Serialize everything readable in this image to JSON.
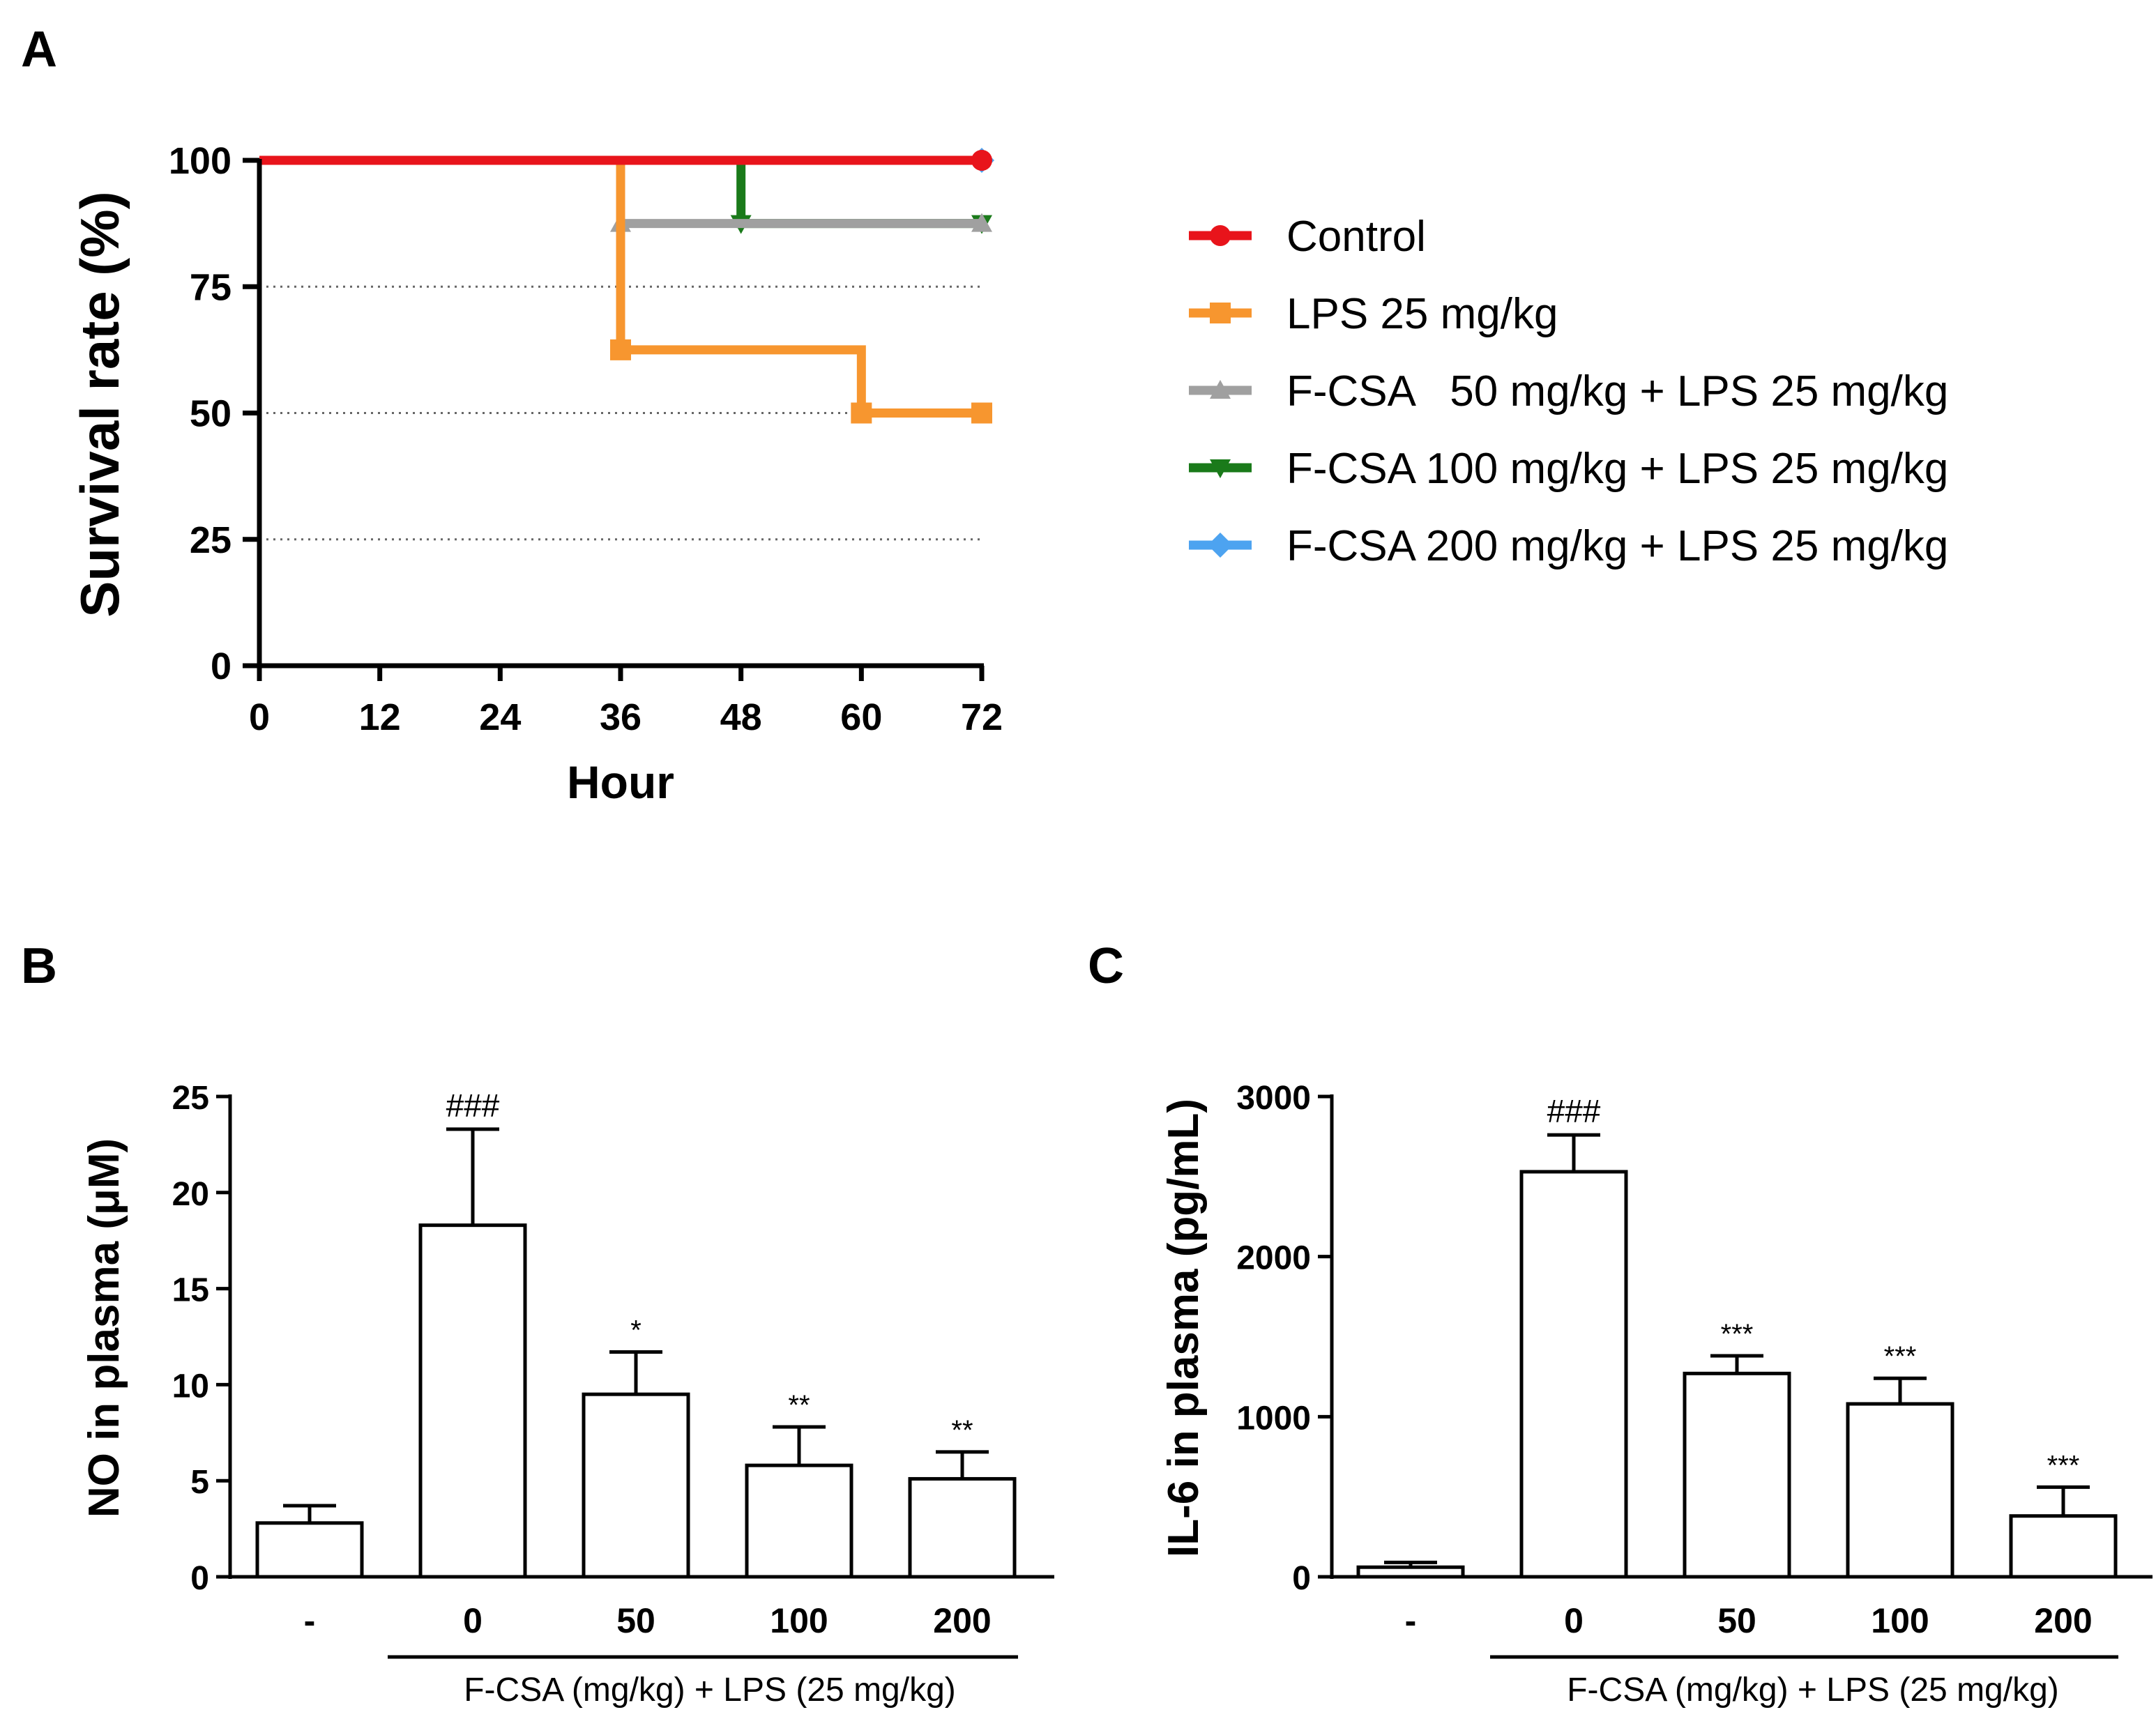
{
  "chart_data": [
    {
      "panel": "A",
      "type": "line",
      "step": true,
      "xlabel": "Hour",
      "ylabel": "Survival rate (%)",
      "xlim": [
        0,
        72
      ],
      "ylim": [
        0,
        100
      ],
      "x_ticks": [
        "0",
        "12",
        "24",
        "36",
        "48",
        "60",
        "72"
      ],
      "y_ticks": [
        "0",
        "25",
        "50",
        "75",
        "100"
      ],
      "gridlines_y": [
        25,
        50,
        75
      ],
      "legend_position": "right",
      "series": [
        {
          "name": "Control",
          "color": "#e8141b",
          "marker": "circle",
          "x": [
            0,
            72
          ],
          "y": [
            100,
            100
          ],
          "marker_x": [
            72
          ],
          "marker_y": [
            100
          ]
        },
        {
          "name": "LPS 25 mg/kg",
          "color": "#f7962f",
          "marker": "square",
          "x": [
            0,
            36,
            36,
            60,
            60,
            72
          ],
          "y": [
            100,
            100,
            62.5,
            62.5,
            50,
            50
          ],
          "marker_x": [
            36,
            60,
            72
          ],
          "marker_y": [
            62.5,
            50,
            50
          ]
        },
        {
          "name": "F-CSA   50 mg/kg + LPS 25 mg/kg",
          "color": "#a0a0a0",
          "marker": "triangle-up",
          "x": [
            0,
            36,
            36,
            72
          ],
          "y": [
            100,
            100,
            87.5,
            87.5
          ],
          "marker_x": [
            36,
            72
          ],
          "marker_y": [
            87.5,
            87.5
          ]
        },
        {
          "name": "F-CSA 100 mg/kg + LPS 25 mg/kg",
          "color": "#1a7a1a",
          "marker": "triangle-down",
          "x": [
            0,
            48,
            48,
            72
          ],
          "y": [
            100,
            100,
            87.5,
            87.5
          ],
          "marker_x": [
            48,
            72
          ],
          "marker_y": [
            87.5,
            87.5
          ]
        },
        {
          "name": "F-CSA 200 mg/kg + LPS 25 mg/kg",
          "color": "#4da3f0",
          "marker": "diamond",
          "x": [
            0,
            72
          ],
          "y": [
            100,
            100
          ],
          "marker_x": [
            72
          ],
          "marker_y": [
            100
          ]
        }
      ]
    },
    {
      "panel": "B",
      "type": "bar",
      "ylabel": "NO in plasma (μM)",
      "ylim": [
        0,
        25
      ],
      "y_ticks": [
        "0",
        "5",
        "10",
        "15",
        "20",
        "25"
      ],
      "categories": [
        "-",
        "0",
        "50",
        "100",
        "200"
      ],
      "values": [
        2.8,
        18.3,
        9.5,
        5.8,
        5.1
      ],
      "errors": [
        0.9,
        5.0,
        2.2,
        2.0,
        1.4
      ],
      "significance": [
        "",
        "###",
        "*",
        "**",
        "**"
      ],
      "group_label": "F-CSA  (mg/kg) + LPS (25 mg/kg)"
    },
    {
      "panel": "C",
      "type": "bar",
      "ylabel": "IL-6 in plasma  (pg/mL)",
      "ylim": [
        0,
        3000
      ],
      "y_ticks": [
        "0",
        "1000",
        "2000",
        "3000"
      ],
      "categories": [
        "-",
        "0",
        "50",
        "100",
        "200"
      ],
      "values": [
        60,
        2530,
        1270,
        1080,
        380
      ],
      "errors": [
        30,
        230,
        110,
        160,
        180
      ],
      "significance": [
        "",
        "###",
        "***",
        "***",
        "***"
      ],
      "group_label": "F-CSA  (mg/kg) + LPS (25 mg/kg)"
    }
  ]
}
